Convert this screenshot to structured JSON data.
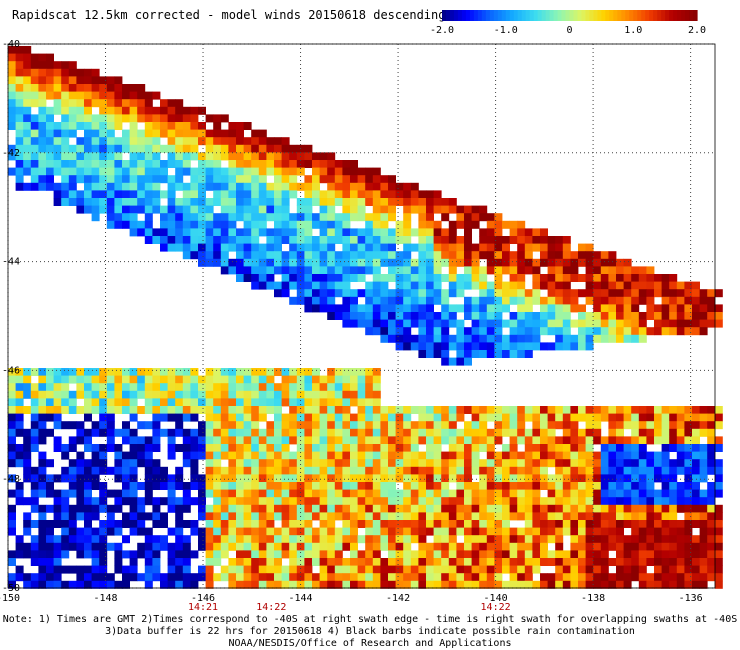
{
  "title": "Rapidscat 12.5km corrected - model winds 20150618 descending",
  "colorbar": {
    "ticks": [
      "-2.0",
      "-1.0",
      "0",
      "1.0",
      "2.0"
    ],
    "range": [
      -2.0,
      2.0
    ],
    "colors": [
      "#00008c",
      "#0000ff",
      "#0a64ff",
      "#14aaff",
      "#3cdcf0",
      "#8cf5b4",
      "#dcf564",
      "#ffd200",
      "#ff8c00",
      "#f03c00",
      "#b40000",
      "#8c0000"
    ]
  },
  "map": {
    "lon_ticks": [
      "-150",
      "-148",
      "-146",
      "-144",
      "-142",
      "-140",
      "-138",
      "-136"
    ],
    "lat_ticks": [
      "-40",
      "-42",
      "-44",
      "-46",
      "-48",
      "-50"
    ],
    "lon_range": [
      -150,
      -135.5
    ],
    "lat_range": [
      -40,
      -50
    ],
    "grid": true,
    "time_labels": [
      {
        "text": "14:21",
        "lon": -146
      },
      {
        "text": "14:22",
        "lon": -144.6
      },
      {
        "text": "14:22",
        "lon": -140
      }
    ]
  },
  "note": {
    "line1": "Note: 1) Times are GMT 2)Times correspond to -40S at right swath edge - time is right swath for overlapping swaths at -40S",
    "line2": "3)Data buffer is 22 hrs for 20150618 4) Black barbs indicate possible rain contamination",
    "line3": "NOAA/NESDIS/Office of Research and Applications"
  }
}
